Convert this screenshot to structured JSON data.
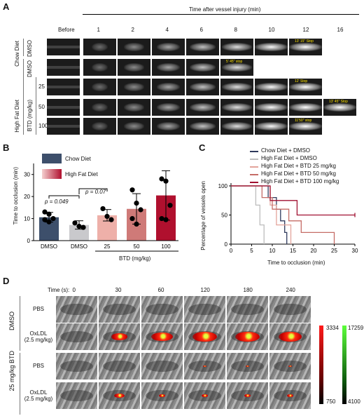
{
  "panelA": {
    "label": "A",
    "header": "Time after vessel injury (min)",
    "col_before": "Before",
    "cols": [
      "1",
      "2",
      "4",
      "6",
      "8",
      "10",
      "12",
      "16"
    ],
    "groups": {
      "chow": "Chow Diet",
      "hfd": "High Fat Diet",
      "btd": "BTD (mg/kg)"
    },
    "rows": [
      "DMSO",
      "DMSO",
      "25",
      "50",
      "100"
    ],
    "stops": [
      "13' 15\" Stop",
      "5' 45\" stop",
      "12' Stop",
      "13' 45\" Stop",
      "11'50\" stop"
    ]
  },
  "panelB": {
    "label": "B",
    "legend": [
      "Chow Diet",
      "High Fat Diet"
    ],
    "ylabel": "Time to occlusion (min)",
    "p1": "p = 0.049",
    "p2": "p = 0.07",
    "xgroup": "BTD (mg/kg)"
  },
  "panelC": {
    "label": "C",
    "legend": [
      "Chow Diet + DMSO",
      "High Fat Diet + DMSO",
      "High Fat Diet + BTD 25 mg/kg",
      "High Fat Diet + BTD 50 mg/kg",
      "High Fat Diet + BTD 100 mg/kg"
    ],
    "ylabel": "Percentage of vessels open",
    "xlabel": "Time to occlusion (min)"
  },
  "panelD": {
    "label": "D",
    "time_label": "Time (s):",
    "times": [
      "0",
      "30",
      "60",
      "120",
      "180",
      "240"
    ],
    "groups": [
      "DMSO",
      "25 mg/kg BTD"
    ],
    "rows": [
      "PBS",
      "OxLDL\n(2.5 mg/kg)",
      "PBS",
      "OxLDL\n(2.5 mg/kg)"
    ],
    "scale_red": {
      "max": "3334",
      "min": "750"
    },
    "scale_green": {
      "max": "17259",
      "min": "4100"
    }
  },
  "colors": {
    "chow": "#3d4f6b",
    "hfd": "#c9c9cc",
    "btd25": "#eeb0a9",
    "btd50": "#cf7a78",
    "btd100": "#b0102e"
  },
  "chart_data": [
    {
      "type": "bar",
      "ylabel": "Time to occlusion (min)",
      "ylim": [
        0,
        35
      ],
      "yticks": [
        0,
        10,
        20,
        30
      ],
      "categories": [
        "DMSO",
        "DMSO",
        "25",
        "50",
        "100"
      ],
      "values": [
        10.6,
        7.1,
        11.5,
        14.4,
        20.5
      ],
      "errors": [
        2.2,
        1.9,
        2.6,
        6.9,
        11.2
      ],
      "points": [
        [
          13,
          12,
          10,
          9.5,
          8.5
        ],
        [
          8,
          6.5,
          6
        ],
        [
          14.5,
          11,
          9.5
        ],
        [
          23,
          17,
          14,
          10,
          7.5
        ],
        [
          28,
          27,
          16,
          10,
          9.5
        ]
      ],
      "colors": [
        "#3d4f6b",
        "#c9c9cc",
        "#eeb0a9",
        "#cf7a78",
        "#b0102e"
      ]
    },
    {
      "type": "line",
      "ylabel": "Percentage of vessels open",
      "xlabel": "Time to occlusion (min)",
      "xlim": [
        0,
        30
      ],
      "ylim": [
        0,
        100
      ],
      "xticks": [
        0,
        5,
        10,
        15,
        20,
        25,
        30
      ],
      "yticks": [
        0,
        50,
        100
      ],
      "series": [
        {
          "name": "Chow Diet + DMSO",
          "color": "#2f3a5c",
          "steps": [
            [
              0,
              100
            ],
            [
              9,
              100
            ],
            [
              9,
              80
            ],
            [
              11,
              80
            ],
            [
              11,
              60
            ],
            [
              12,
              60
            ],
            [
              12,
              40
            ],
            [
              13,
              40
            ],
            [
              13,
              20
            ],
            [
              13.5,
              20
            ],
            [
              13.5,
              0
            ]
          ]
        },
        {
          "name": "High Fat Diet + DMSO",
          "color": "#bdbdbd",
          "steps": [
            [
              0,
              100
            ],
            [
              6,
              100
            ],
            [
              6,
              67
            ],
            [
              7,
              67
            ],
            [
              7,
              33
            ],
            [
              8,
              33
            ],
            [
              8,
              0
            ]
          ]
        },
        {
          "name": "High Fat Diet + BTD 25 mg/kg",
          "color": "#e3a49b",
          "steps": [
            [
              0,
              100
            ],
            [
              9.5,
              100
            ],
            [
              9.5,
              67
            ],
            [
              11,
              67
            ],
            [
              11,
              33
            ],
            [
              14.5,
              33
            ],
            [
              14.5,
              0
            ]
          ]
        },
        {
          "name": "High Fat Diet + BTD 50 mg/kg",
          "color": "#c56c66",
          "steps": [
            [
              0,
              100
            ],
            [
              7.5,
              100
            ],
            [
              7.5,
              80
            ],
            [
              10,
              80
            ],
            [
              10,
              60
            ],
            [
              14,
              60
            ],
            [
              14,
              40
            ],
            [
              17,
              40
            ],
            [
              17,
              20
            ],
            [
              25,
              20
            ],
            [
              25,
              0
            ]
          ]
        },
        {
          "name": "High Fat Diet + BTD 100 mg/kg",
          "color": "#a01030",
          "steps": [
            [
              0,
              100
            ],
            [
              9.5,
              100
            ],
            [
              9.5,
              75
            ],
            [
              16,
              75
            ],
            [
              16,
              50
            ],
            [
              30,
              50
            ]
          ]
        }
      ]
    }
  ]
}
